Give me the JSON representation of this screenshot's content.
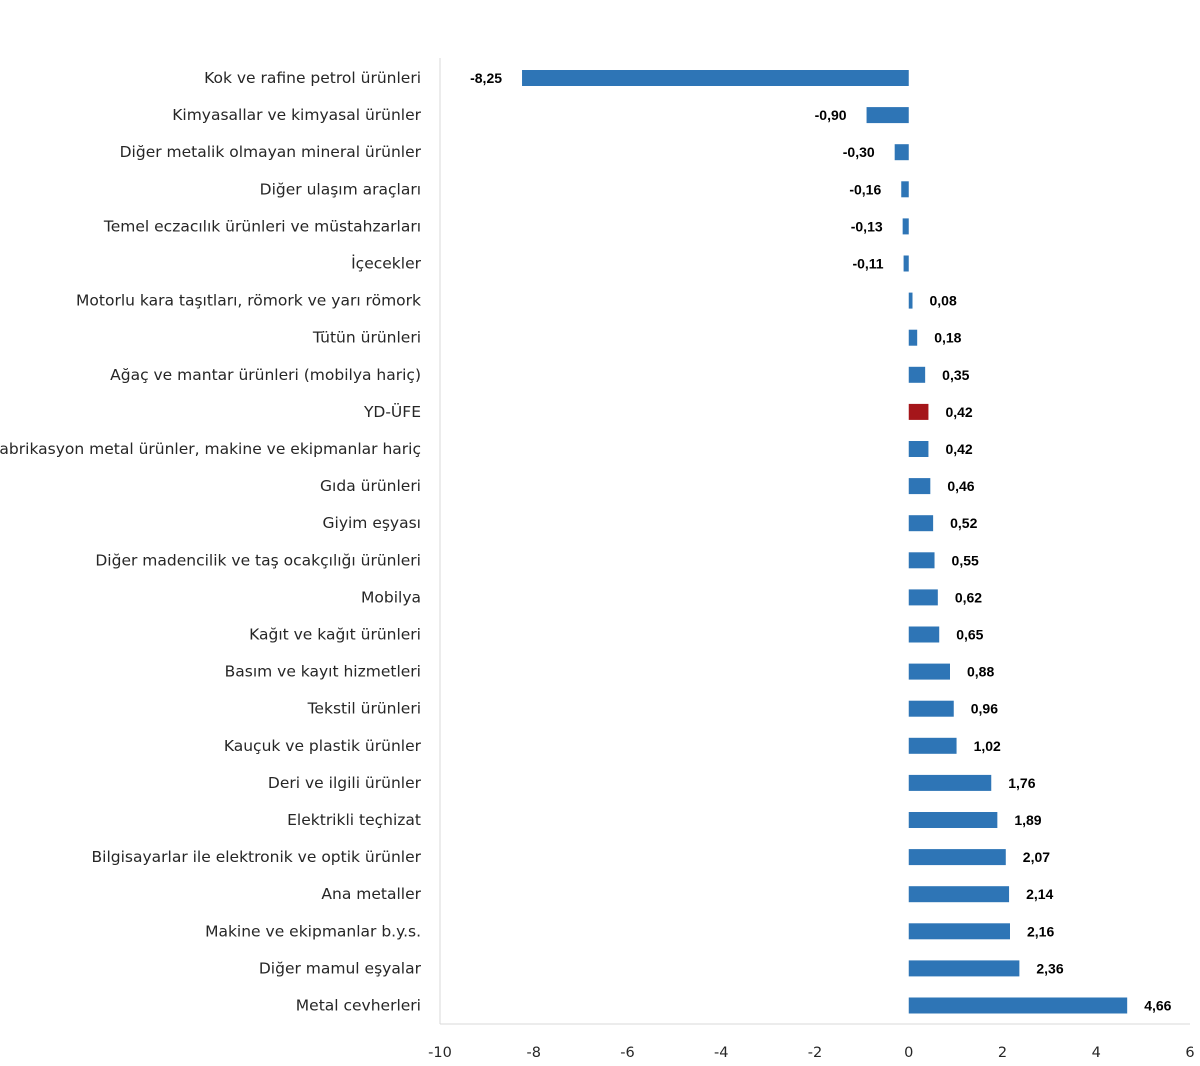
{
  "chart_data": {
    "type": "bar",
    "orientation": "horizontal",
    "title": "",
    "xlabel": "",
    "ylabel": "",
    "xlim": [
      -10,
      6
    ],
    "xticks": [
      -10,
      -8,
      -6,
      -4,
      -2,
      0,
      2,
      4,
      6
    ],
    "grid": false,
    "legend": "none",
    "colors": {
      "bar": "#2e75b6",
      "highlight": "#a5161a",
      "axis": "#d9d9d9"
    },
    "categories": [
      "Kok ve rafine petrol ürünleri",
      "Kimyasallar ve kimyasal ürünler",
      "Diğer metalik olmayan mineral ürünler",
      "Diğer ulaşım araçları",
      "Temel eczacılık ürünleri ve müstahzarları",
      "İçecekler",
      "Motorlu kara taşıtları, römork ve yarı römork",
      "Tütün ürünleri",
      "Ağaç ve mantar ürünleri (mobilya hariç)",
      "YD-ÜFE",
      "Fabrikasyon metal ürünler, makine ve ekipmanlar hariç",
      "Gıda ürünleri",
      "Giyim eşyası",
      "Diğer madencilik ve taş ocakçılığı ürünleri",
      "Mobilya",
      "Kağıt ve kağıt ürünleri",
      "Basım ve kayıt hizmetleri",
      "Tekstil ürünleri",
      "Kauçuk ve plastik ürünler",
      "Deri ve ilgili ürünler",
      "Elektrikli teçhizat",
      "Bilgisayarlar ile elektronik ve optik ürünler",
      "Ana metaller",
      "Makine ve ekipmanlar b.y.s.",
      "Diğer mamul eşyalar",
      "Metal cevherleri"
    ],
    "values": [
      -8.25,
      -0.9,
      -0.3,
      -0.16,
      -0.13,
      -0.11,
      0.08,
      0.18,
      0.35,
      0.42,
      0.42,
      0.46,
      0.52,
      0.55,
      0.62,
      0.65,
      0.88,
      0.96,
      1.02,
      1.76,
      1.89,
      2.07,
      2.14,
      2.16,
      2.36,
      4.66
    ],
    "value_labels": [
      "-8,25",
      "-0,90",
      "-0,30",
      "-0,16",
      "-0,13",
      "-0,11",
      "0,08",
      "0,18",
      "0,35",
      "0,42",
      "0,42",
      "0,46",
      "0,52",
      "0,55",
      "0,62",
      "0,65",
      "0,88",
      "0,96",
      "1,02",
      "1,76",
      "1,89",
      "2,07",
      "2,14",
      "2,16",
      "2,36",
      "4,66"
    ],
    "highlight_category": "YD-ÜFE"
  }
}
